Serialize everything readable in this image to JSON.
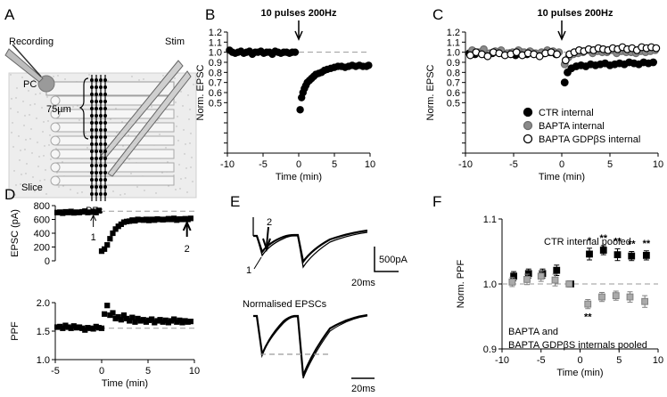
{
  "panels": {
    "A": {
      "letter": "A",
      "labels": {
        "recording": "Recording",
        "stim": "Stim",
        "pc": "PC",
        "distance": "75µm",
        "slice": "Slice",
        "pfs": "PFs"
      }
    },
    "E": {
      "letter": "E",
      "labels": {
        "marker1": "1",
        "marker2": "2",
        "scale_current": "500pA",
        "scale_time_top": "20ms",
        "normalised_title": "Normalised EPSCs",
        "scale_time_bottom": "20ms"
      }
    }
  },
  "chart_data": [
    {
      "id": "B",
      "letter": "B",
      "type": "scatter",
      "annotation": "10 pulses 200Hz",
      "xlabel": "Time (min)",
      "ylabel": "Norm. EPSC",
      "xlim": [
        -10,
        10
      ],
      "ylim": [
        0.0,
        1.2
      ],
      "xticks": [
        -10,
        -5,
        0,
        5,
        10
      ],
      "yticks": [
        "0.0",
        "0.1",
        "0.2",
        "0.3",
        "0.4",
        "0.5",
        "0.6",
        "0.7",
        "0.8",
        "0.9",
        "1.0",
        "1.1",
        "1.2"
      ],
      "ytick_labels": [
        "0.5",
        "0.6",
        "0.7",
        "0.8",
        "0.9",
        "1.0",
        "1.1",
        "1.2"
      ],
      "reference_line": 1.0,
      "series": [
        {
          "color": "#000000",
          "x": [
            -9.7,
            -9.3,
            -8.9,
            -8.5,
            -8.1,
            -7.7,
            -7.3,
            -6.9,
            -6.5,
            -6.1,
            -5.7,
            -5.3,
            -4.9,
            -4.5,
            -4.1,
            -3.7,
            -3.3,
            -2.9,
            -2.5,
            -2.1,
            -1.7,
            -1.3,
            -0.9,
            -0.5,
            0.2,
            0.4,
            0.6,
            0.8,
            1.0,
            1.2,
            1.5,
            1.8,
            2.1,
            2.4,
            2.8,
            3.2,
            3.6,
            4.0,
            4.5,
            5.0,
            5.5,
            6.0,
            6.5,
            7.0,
            7.5,
            8.0,
            8.5,
            9.0,
            9.5,
            9.8
          ],
          "y": [
            1.02,
            1.0,
            0.99,
            1.0,
            1.01,
            0.99,
            1.0,
            1.01,
            0.98,
            1.0,
            1.0,
            1.01,
            0.99,
            1.0,
            1.0,
            0.98,
            1.01,
            1.0,
            0.99,
            1.0,
            1.0,
            0.99,
            1.0,
            1.0,
            0.43,
            0.55,
            0.6,
            0.64,
            0.67,
            0.7,
            0.72,
            0.74,
            0.76,
            0.78,
            0.79,
            0.8,
            0.82,
            0.83,
            0.84,
            0.85,
            0.86,
            0.86,
            0.85,
            0.86,
            0.87,
            0.86,
            0.87,
            0.86,
            0.86,
            0.87
          ]
        }
      ]
    },
    {
      "id": "C",
      "letter": "C",
      "type": "scatter",
      "annotation": "10 pulses 200Hz",
      "xlabel": "Time (min)",
      "ylabel": "Norm. EPSC",
      "xlim": [
        -10,
        10
      ],
      "ylim": [
        0.0,
        1.2
      ],
      "xticks": [
        -10,
        -5,
        0,
        5,
        10
      ],
      "yticks": [
        "0.0",
        "0.1",
        "0.2",
        "0.3",
        "0.4",
        "0.5",
        "0.6",
        "0.7",
        "0.8",
        "0.9",
        "1.0",
        "1.1",
        "1.2"
      ],
      "ytick_labels": [
        "0.5",
        "0.6",
        "0.7",
        "0.8",
        "0.9",
        "1.0",
        "1.1",
        "1.2"
      ],
      "reference_line": 1.0,
      "legend_position": "bottom-right",
      "series": [
        {
          "name": "CTR internal",
          "color": "#000000",
          "fill": "#000000",
          "x": [
            -9.6,
            -9.0,
            -8.4,
            -7.8,
            -7.2,
            -6.6,
            -6.0,
            -5.4,
            -4.8,
            -4.2,
            -3.6,
            -3.0,
            -2.4,
            -1.8,
            -1.2,
            -0.6,
            0.3,
            0.6,
            1.0,
            1.5,
            2.0,
            2.5,
            3.0,
            3.5,
            4.0,
            4.5,
            5.0,
            5.5,
            6.0,
            6.5,
            7.0,
            7.5,
            8.0,
            8.5,
            9.0,
            9.5
          ],
          "y": [
            0.99,
            0.98,
            1.0,
            0.97,
            0.99,
            1.0,
            0.98,
            0.99,
            0.97,
            1.0,
            0.98,
            0.99,
            0.98,
            0.99,
            1.0,
            0.98,
            0.7,
            0.8,
            0.84,
            0.86,
            0.87,
            0.86,
            0.88,
            0.87,
            0.88,
            0.89,
            0.87,
            0.88,
            0.89,
            0.88,
            0.9,
            0.89,
            0.88,
            0.9,
            0.89,
            0.9
          ]
        },
        {
          "name": "BAPTA internal",
          "color": "#6e6e6e",
          "fill": "#8a8a8a",
          "x": [
            -9.3,
            -8.7,
            -8.1,
            -7.5,
            -6.9,
            -6.3,
            -5.7,
            -5.1,
            -4.5,
            -3.9,
            -3.3,
            -2.7,
            -2.1,
            -1.5,
            -0.9,
            -0.3,
            0.3,
            0.7,
            1.2,
            1.7,
            2.2,
            2.7,
            3.2,
            3.7,
            4.2,
            4.7,
            5.2,
            5.7,
            6.2,
            6.7,
            7.2,
            7.7,
            8.2,
            8.7,
            9.2,
            9.7
          ],
          "y": [
            1.02,
            1.0,
            1.03,
            0.99,
            1.01,
            1.02,
            0.99,
            1.0,
            1.02,
            1.0,
            1.01,
            0.99,
            1.0,
            1.02,
            1.01,
            1.0,
            0.88,
            0.95,
            0.98,
            0.99,
            1.0,
            1.02,
            0.99,
            1.01,
            1.0,
            1.0,
            1.02,
            0.99,
            1.01,
            1.0,
            1.0,
            0.99,
            1.01,
            1.0,
            1.01,
            1.02
          ]
        },
        {
          "name": "BAPTA GDPβS internal",
          "color": "#000000",
          "fill": "#ffffff",
          "x": [
            -9.5,
            -8.9,
            -8.3,
            -7.7,
            -7.1,
            -6.5,
            -5.9,
            -5.3,
            -4.7,
            -4.1,
            -3.5,
            -2.9,
            -2.3,
            -1.7,
            -1.1,
            -0.5,
            0.4,
            0.8,
            1.3,
            1.8,
            2.3,
            2.8,
            3.3,
            3.8,
            4.3,
            4.8,
            5.3,
            5.8,
            6.3,
            6.8,
            7.3,
            7.8,
            8.3,
            8.8,
            9.3,
            9.8
          ],
          "y": [
            0.97,
            1.0,
            0.98,
            0.96,
            1.0,
            0.99,
            0.97,
            0.98,
            1.0,
            0.97,
            0.99,
            0.98,
            0.96,
            0.99,
            1.0,
            0.98,
            0.92,
            0.98,
            1.0,
            1.02,
            1.01,
            1.03,
            1.02,
            1.04,
            1.03,
            1.02,
            1.04,
            1.03,
            1.05,
            1.03,
            1.04,
            1.02,
            1.05,
            1.04,
            1.05,
            1.04
          ]
        }
      ]
    },
    {
      "id": "D1",
      "letter": "D",
      "type": "scatter",
      "ylabel": "EPSC (pA)",
      "xlim": [
        -5,
        10
      ],
      "ylim": [
        0,
        800
      ],
      "yticks": [
        "0",
        "200",
        "400",
        "600",
        "800"
      ],
      "reference_line": 720,
      "markers": [
        "1",
        "2"
      ],
      "series": [
        {
          "color": "#000000",
          "x": [
            -4.8,
            -4.5,
            -4.2,
            -3.9,
            -3.6,
            -3.3,
            -3.0,
            -2.7,
            -2.4,
            -2.1,
            -1.8,
            -1.5,
            -1.2,
            -0.9,
            -0.6,
            -0.3,
            0.0,
            0.3,
            0.6,
            0.9,
            1.2,
            1.5,
            1.8,
            2.1,
            2.4,
            2.7,
            3.0,
            3.3,
            3.6,
            3.9,
            4.2,
            4.5,
            4.8,
            5.1,
            5.4,
            5.7,
            6.0,
            6.3,
            6.6,
            6.9,
            7.2,
            7.5,
            7.8,
            8.1,
            8.4,
            8.7,
            9.0,
            9.3,
            9.6
          ],
          "y": [
            700,
            705,
            690,
            710,
            700,
            715,
            695,
            705,
            700,
            710,
            720,
            700,
            705,
            715,
            700,
            730,
            140,
            170,
            230,
            320,
            400,
            460,
            500,
            530,
            560,
            570,
            575,
            590,
            580,
            600,
            595,
            590,
            600,
            585,
            600,
            590,
            605,
            600,
            595,
            600,
            610,
            600,
            615,
            590,
            605,
            600,
            610,
            600,
            615
          ]
        }
      ]
    },
    {
      "id": "D2",
      "letter": "",
      "type": "scatter",
      "xlabel": "Time (min)",
      "ylabel": "PPF",
      "xlim": [
        -5,
        10
      ],
      "ylim": [
        1.0,
        2.0
      ],
      "xticks": [
        -5,
        0,
        5,
        10
      ],
      "yticks": [
        "1.0",
        "1.5",
        "2.0"
      ],
      "reference_line": 1.55,
      "series": [
        {
          "color": "#000000",
          "x": [
            -4.8,
            -4.5,
            -4.2,
            -3.9,
            -3.6,
            -3.3,
            -3.0,
            -2.7,
            -2.4,
            -2.1,
            -1.8,
            -1.5,
            -1.2,
            -0.9,
            -0.6,
            -0.3,
            0.0,
            0.3,
            0.6,
            0.9,
            1.2,
            1.5,
            1.8,
            2.1,
            2.4,
            2.7,
            3.0,
            3.3,
            3.6,
            3.9,
            4.2,
            4.5,
            4.8,
            5.1,
            5.4,
            5.7,
            6.0,
            6.3,
            6.6,
            6.9,
            7.2,
            7.5,
            7.8,
            8.1,
            8.4,
            8.7,
            9.0,
            9.3,
            9.6
          ],
          "y": [
            1.57,
            1.58,
            1.55,
            1.6,
            1.57,
            1.55,
            1.59,
            1.56,
            1.57,
            1.55,
            1.52,
            1.56,
            1.55,
            1.54,
            1.58,
            1.56,
            1.55,
            1.8,
            1.95,
            1.78,
            1.82,
            1.72,
            1.75,
            1.7,
            1.78,
            1.72,
            1.68,
            1.74,
            1.66,
            1.72,
            1.68,
            1.7,
            1.66,
            1.69,
            1.71,
            1.65,
            1.68,
            1.7,
            1.66,
            1.69,
            1.65,
            1.68,
            1.71,
            1.66,
            1.69,
            1.65,
            1.68,
            1.66,
            1.67
          ]
        }
      ]
    },
    {
      "id": "F",
      "letter": "F",
      "type": "scatter",
      "xlabel": "Time (min)",
      "ylabel": "Norm. PPF",
      "xlim": [
        -10,
        10
      ],
      "ylim": [
        0.9,
        1.1
      ],
      "xticks": [
        -10,
        -5,
        0,
        5,
        10
      ],
      "yticks": [
        "0.9",
        "1.0",
        "1.1"
      ],
      "reference_line": 1.0,
      "series_annotations": [
        "CTR internal pooled",
        "BAPTA and",
        "BAPTA GDPβS internals pooled"
      ],
      "significance": "**",
      "series": [
        {
          "color": "#000000",
          "fill": "#000000",
          "x": [
            -8.5,
            -6.6,
            -4.8,
            -3.0,
            -1.2,
            1.2,
            3.0,
            4.8,
            6.6,
            8.5
          ],
          "y": [
            1.012,
            1.016,
            1.016,
            1.021,
            1.0,
            1.046,
            1.052,
            1.045,
            1.043,
            1.044
          ],
          "err": [
            0.007,
            0.007,
            0.007,
            0.008,
            0,
            0.009,
            0.007,
            0.009,
            0.007,
            0.007
          ],
          "stars": [
            "",
            "",
            "",
            "",
            "",
            "*",
            "**",
            "**",
            "**",
            "**"
          ]
        },
        {
          "color": "#808080",
          "fill": "#aaaaaa",
          "x": [
            -8.7,
            -6.8,
            -5.0,
            -3.2,
            -1.4,
            1.0,
            2.8,
            4.6,
            6.4,
            8.3
          ],
          "y": [
            1.003,
            1.007,
            1.012,
            1.006,
            1.0,
            0.969,
            0.98,
            0.982,
            0.98,
            0.973
          ],
          "err": [
            0.007,
            0.008,
            0.008,
            0.009,
            0,
            0.007,
            0.007,
            0.007,
            0.008,
            0.009
          ],
          "stars": [
            "",
            "",
            "",
            "",
            "",
            "**",
            "",
            "",
            "",
            ""
          ]
        }
      ]
    }
  ]
}
